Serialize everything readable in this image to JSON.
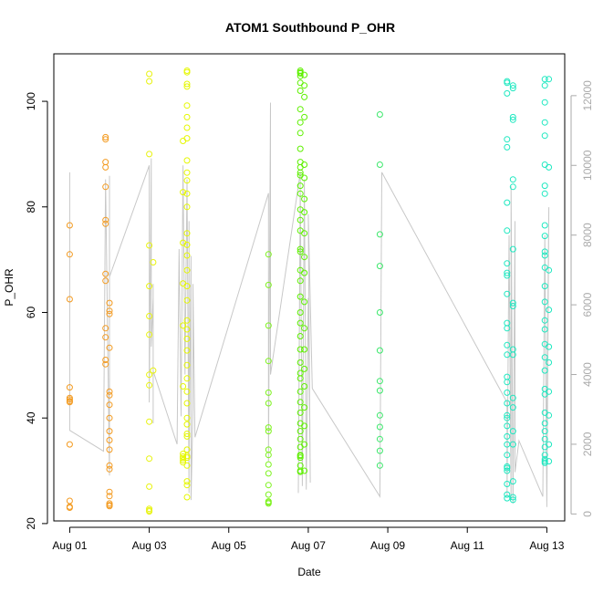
{
  "chart_data": {
    "type": "scatter",
    "title": "ATOM1 Southbound P_OHR",
    "xlabel": "Date",
    "ylabel": "P_OHR",
    "x_axis": {
      "min_day": 0.6,
      "max_day": 13.45,
      "ticks": [
        {
          "day": 1,
          "label": "Aug 01"
        },
        {
          "day": 3,
          "label": "Aug 03"
        },
        {
          "day": 5,
          "label": "Aug 05"
        },
        {
          "day": 7,
          "label": "Aug 07"
        },
        {
          "day": 9,
          "label": "Aug 09"
        },
        {
          "day": 11,
          "label": "Aug 11"
        },
        {
          "day": 13,
          "label": "Aug 13"
        }
      ]
    },
    "y_left": {
      "min": 20.5,
      "max": 109,
      "ticks": [
        20,
        40,
        60,
        80,
        100
      ]
    },
    "y_right": {
      "min": -200,
      "max": 13200,
      "ticks": [
        0,
        2000,
        4000,
        6000,
        8000,
        10000,
        12000
      ],
      "color": "#aaaaaa"
    },
    "grey_series": {
      "name": "",
      "color": "#c8c8c8",
      "points": [
        [
          1.0,
          9800
        ],
        [
          1.0,
          2400
        ],
        [
          1.85,
          1800
        ],
        [
          1.9,
          9600
        ],
        [
          2.0,
          1100
        ],
        [
          2.0,
          9700
        ],
        [
          2.0,
          6800
        ],
        [
          3.0,
          10000
        ],
        [
          3.0,
          3200
        ],
        [
          3.05,
          10200
        ],
        [
          3.05,
          4800
        ],
        [
          3.1,
          6200
        ],
        [
          3.1,
          2600
        ],
        [
          3.1,
          6600
        ],
        [
          3.1,
          4100
        ],
        [
          3.7,
          2000
        ],
        [
          3.75,
          7600
        ],
        [
          3.8,
          2800
        ],
        [
          3.85,
          10000
        ],
        [
          3.9,
          4000
        ],
        [
          3.95,
          9600
        ],
        [
          4.0,
          600
        ],
        [
          4.0,
          8400
        ],
        [
          4.0,
          1500
        ],
        [
          4.05,
          7400
        ],
        [
          4.05,
          400
        ],
        [
          4.1,
          3000
        ],
        [
          4.1,
          6600
        ],
        [
          4.15,
          2200
        ],
        [
          6.0,
          9200
        ],
        [
          6.0,
          1500
        ],
        [
          6.05,
          11800
        ],
        [
          6.05,
          4000
        ],
        [
          6.8,
          9800
        ],
        [
          6.75,
          600
        ],
        [
          6.8,
          9200
        ],
        [
          6.85,
          800
        ],
        [
          6.9,
          9600
        ],
        [
          6.95,
          700
        ],
        [
          7.0,
          6200
        ],
        [
          7.05,
          900
        ],
        [
          7.0,
          8600
        ],
        [
          7.1,
          3600
        ],
        [
          8.8,
          500
        ],
        [
          8.85,
          9800
        ],
        [
          12.0,
          3200
        ],
        [
          12.0,
          500
        ],
        [
          12.05,
          8000
        ],
        [
          12.1,
          400
        ],
        [
          12.1,
          9400
        ],
        [
          12.15,
          300
        ],
        [
          12.2,
          8400
        ],
        [
          12.2,
          1200
        ],
        [
          12.3,
          2100
        ],
        [
          12.9,
          500
        ],
        [
          12.95,
          8000
        ],
        [
          13.0,
          200
        ],
        [
          13.05,
          8800
        ],
        [
          13.0,
          2600
        ]
      ]
    },
    "colored_points": [
      {
        "day": 1.0,
        "values": [
          76.5,
          71.0,
          62.5,
          45.8,
          43.8,
          43.5,
          43.2,
          43.0,
          35.0,
          24.3,
          23.2,
          23.0
        ],
        "color": "#f39a1f"
      },
      {
        "day": 1.9,
        "values": [
          93.2,
          92.8,
          88.5,
          87.5,
          83.8,
          77.5,
          76.8,
          67.3,
          66.0,
          57.0,
          55.3,
          51.0,
          50.2
        ],
        "color": "#f39a1f"
      },
      {
        "day": 2.0,
        "values": [
          61.8,
          60.3,
          59.7,
          53.3,
          45.0,
          44.3,
          42.5,
          40.0,
          37.5,
          35.8,
          34.0,
          31.0,
          30.3,
          26.0,
          25.2,
          23.8,
          23.5,
          23.3
        ],
        "color": "#f39a1f"
      },
      {
        "day": 3.0,
        "values": [
          105.2,
          103.8,
          90.0,
          72.7,
          65.0,
          59.3,
          55.8,
          48.2,
          46.2,
          39.3,
          32.3,
          27.0,
          22.8,
          22.5,
          22.3
        ],
        "color": "#e8f30f"
      },
      {
        "day": 3.1,
        "values": [
          69.5,
          49.0
        ],
        "color": "#e8f30f"
      },
      {
        "day": 3.85,
        "values": [
          92.5,
          82.8,
          73.2,
          65.5,
          57.5,
          46.0,
          33.2,
          32.7,
          32.4,
          32.0,
          31.6
        ],
        "color": "#e5f700"
      },
      {
        "day": 3.95,
        "values": [
          105.8,
          105.5,
          103.3,
          102.8,
          99.2,
          97.0,
          95.0,
          93.0,
          88.8,
          86.5,
          85.0,
          82.5,
          80.0,
          75.0,
          72.8,
          70.8,
          68.0,
          65.0,
          62.3,
          58.5,
          56.8,
          55.0,
          52.8,
          50.0,
          47.5,
          45.0,
          42.8,
          40.0,
          38.8,
          37.0,
          36.5,
          34.0,
          32.8,
          32.5,
          31.0,
          28.0,
          27.3,
          25.0
        ],
        "color": "#e5f700"
      },
      {
        "day": 6.0,
        "values": [
          71.0,
          65.2,
          57.5,
          50.8,
          44.8,
          42.8,
          38.2,
          37.5,
          34.0,
          33.0,
          31.2,
          29.5,
          27.3,
          25.5,
          24.2,
          24.0,
          23.8
        ],
        "color": "#7ef21f"
      },
      {
        "day": 6.8,
        "values": [
          105.8,
          105.5,
          105.3,
          104.8,
          103.5,
          102.0,
          98.5,
          96.0,
          94.0,
          91.0,
          88.5,
          87.5,
          86.5,
          86.0,
          84.0,
          82.5,
          79.5,
          77.5,
          75.5,
          72.0,
          71.5,
          68.0,
          66.0,
          63.0,
          60.0,
          58.0,
          55.5,
          53.0,
          50.5,
          48.5,
          47.5,
          45.0,
          43.0,
          41.0,
          39.0,
          37.5,
          36.0,
          34.5,
          33.0,
          32.8,
          32.5,
          31.0,
          30.0,
          29.8
        ],
        "color": "#5ef000"
      },
      {
        "day": 6.9,
        "values": [
          105.0,
          103.0,
          100.8,
          97.0,
          88.0,
          85.5,
          81.5,
          79.0,
          75.0,
          70.5,
          67.5,
          62.0,
          57.0,
          53.0,
          49.3,
          46.0,
          42.0,
          38.5,
          35.0,
          30.0
        ],
        "color": "#5ef000"
      },
      {
        "day": 8.8,
        "values": [
          97.5,
          88.0,
          74.8,
          68.8,
          60.0,
          52.8,
          47.0,
          45.2,
          40.5,
          38.3,
          36.0,
          33.8,
          31.0
        ],
        "color": "#3be86b"
      },
      {
        "day": 12.0,
        "values": [
          103.8,
          103.5,
          101.5,
          92.8,
          91.3,
          80.8,
          75.5,
          69.3,
          67.5,
          67.0,
          63.5,
          58.0,
          57.0,
          53.8,
          52.0,
          47.8,
          46.8,
          44.8,
          42.8,
          40.5,
          40.0,
          38.5,
          36.5,
          35.0,
          33.0,
          30.8,
          30.5,
          30.0,
          27.5,
          25.5,
          24.8
        ],
        "color": "#1ee8c0"
      },
      {
        "day": 12.15,
        "values": [
          103.0,
          102.5,
          97.0,
          96.5,
          85.2,
          83.8,
          72.0,
          61.8,
          61.2,
          53.0,
          52.0,
          43.8,
          42.0,
          37.5,
          35.0,
          28.0,
          25.0,
          24.5
        ],
        "color": "#1ee8c0"
      },
      {
        "day": 12.95,
        "values": [
          104.2,
          103.0,
          99.8,
          96.0,
          93.5,
          88.0,
          84.0,
          82.5,
          76.5,
          74.5,
          71.5,
          70.8,
          68.5,
          65.0,
          62.0,
          58.5,
          56.8,
          54.0,
          51.5,
          49.0,
          45.5,
          44.5,
          41.0,
          39.0,
          37.5,
          36.0,
          34.5,
          33.0,
          32.2,
          31.8,
          31.5
        ],
        "color": "#1ee8c0"
      },
      {
        "day": 13.05,
        "values": [
          104.2,
          87.5,
          68.0,
          60.5,
          53.5,
          50.5,
          45.0,
          40.5,
          35.0,
          31.8
        ],
        "color": "#1ee8c0"
      }
    ],
    "grid": false,
    "legend": "none"
  }
}
